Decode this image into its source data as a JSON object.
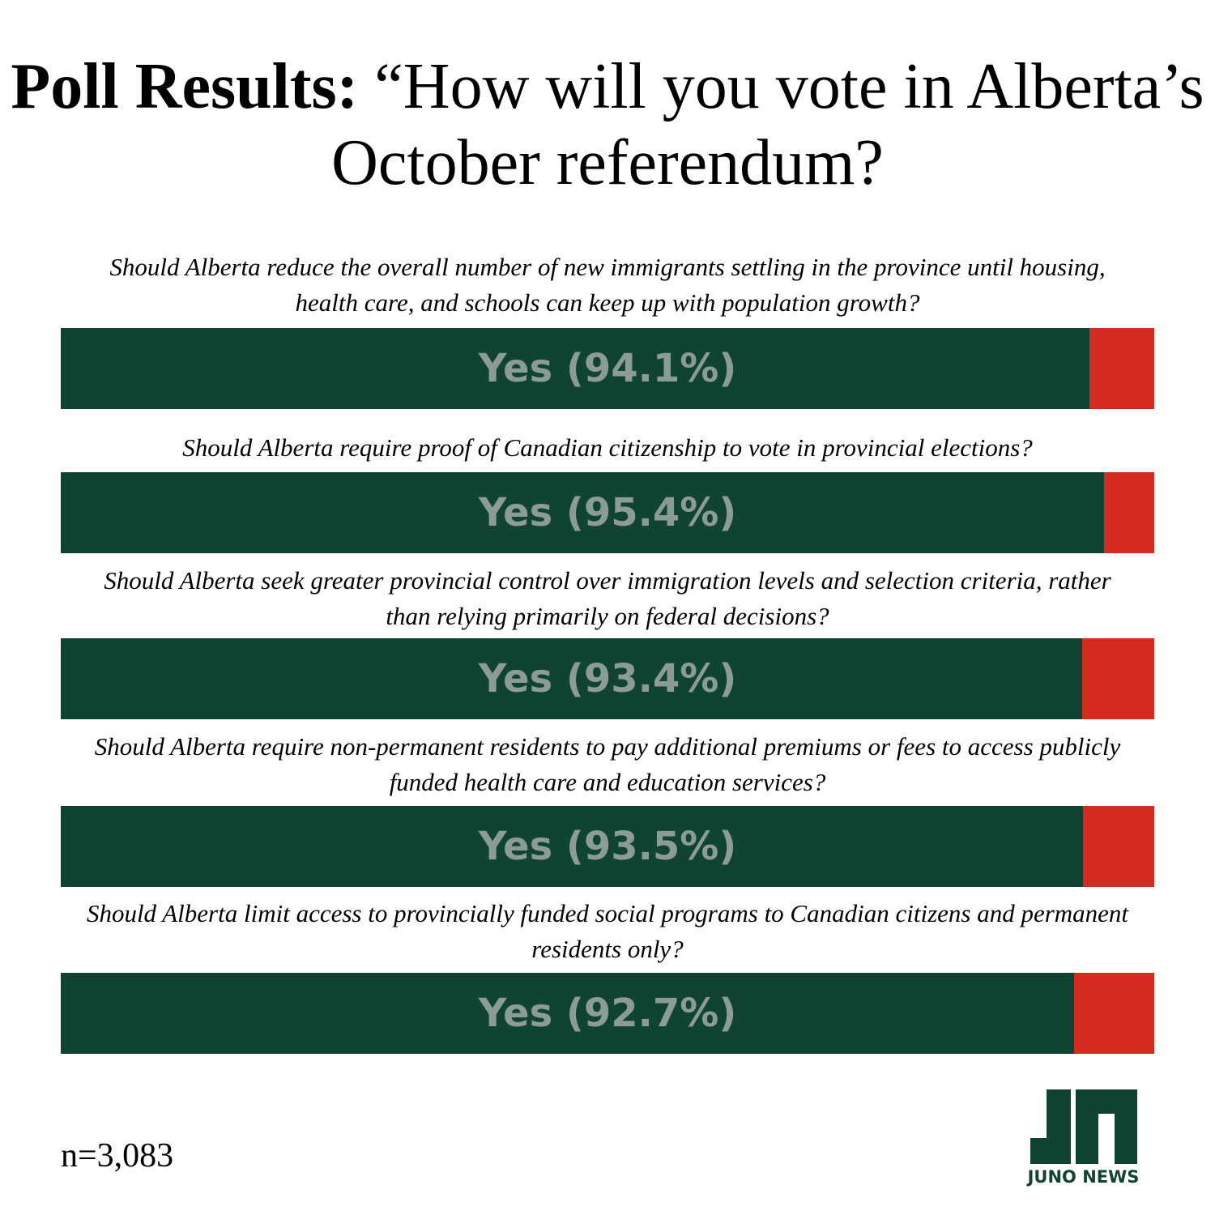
{
  "title": {
    "bold": "Poll Results:",
    "rest": " “How will you vote in Alberta’s October referendum?"
  },
  "colors": {
    "yes": "#104332",
    "no": "#d42b20",
    "label": "#8a9c93"
  },
  "chart_data": {
    "type": "bar",
    "orientation": "horizontal-stacked-100",
    "categories": [
      "Should Alberta reduce the overall number of new immigrants settling in the province until housing, health care, and schools can keep up with population growth?",
      "Should Alberta require proof of Canadian citizenship to vote in provincial elections?",
      "Should Alberta seek greater provincial control over immigration levels and selection criteria, rather than relying primarily on federal decisions?",
      "Should Alberta require non-permanent residents to pay additional premiums or fees to access publicly funded health care and education services?",
      "Should Alberta limit access to provincially funded social programs to Canadian citizens and permanent residents only?"
    ],
    "series": [
      {
        "name": "Yes",
        "values": [
          94.1,
          95.4,
          93.4,
          93.5,
          92.7
        ]
      }
    ],
    "labels": [
      "Yes (94.1%)",
      "Yes (95.4%)",
      "Yes (93.4%)",
      "Yes (93.5%)",
      "Yes (92.7%)"
    ],
    "xlim": [
      0,
      100
    ],
    "grid": false
  },
  "sample": "n=3,083",
  "logo": {
    "text": "JUNO NEWS",
    "icon": "juno-news-logo-icon"
  }
}
